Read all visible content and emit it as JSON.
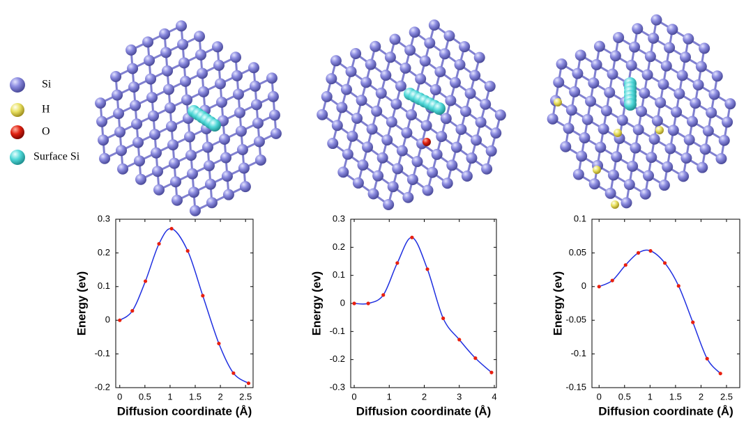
{
  "legend": {
    "items": [
      {
        "label": "Si",
        "color": "#8c8ce0"
      },
      {
        "label": "H",
        "color": "#e8e060"
      },
      {
        "label": "O",
        "color": "#e02010"
      },
      {
        "label": "Surface Si",
        "color": "#50d8d8"
      }
    ]
  },
  "chart_data": [
    {
      "type": "line",
      "xlabel": "Diffusion coordinate (Å)",
      "ylabel": "Energy (ev)",
      "x": [
        0,
        0.25,
        0.51,
        0.78,
        1.03,
        1.35,
        1.65,
        1.97,
        2.26,
        2.56
      ],
      "series": [
        {
          "color": "#1f2fe0",
          "marker_color": "#e82010",
          "values": [
            0,
            0.028,
            0.116,
            0.227,
            0.272,
            0.206,
            0.073,
            -0.069,
            -0.157,
            -0.187
          ]
        }
      ],
      "xlim": [
        -0.08,
        2.65
      ],
      "xticks": [
        0,
        0.5,
        1,
        1.5,
        2,
        2.5
      ],
      "ylim": [
        -0.2,
        0.3
      ],
      "yticks": [
        0.3,
        0.2,
        0.1,
        0,
        -0.1,
        -0.2
      ]
    },
    {
      "type": "line",
      "xlabel": "Diffusion coordinate (Å)",
      "ylabel": "Energy (ev)",
      "x": [
        0,
        0.4,
        0.83,
        1.23,
        1.65,
        2.09,
        2.54,
        3.0,
        3.46,
        3.92
      ],
      "series": [
        {
          "color": "#1f2fe0",
          "marker_color": "#e82010",
          "values": [
            0,
            0,
            0.03,
            0.144,
            0.235,
            0.122,
            -0.053,
            -0.129,
            -0.195,
            -0.246
          ]
        }
      ],
      "xlim": [
        -0.1,
        4.06
      ],
      "xticks": [
        0,
        1,
        2,
        3,
        4
      ],
      "ylim": [
        -0.3,
        0.3
      ],
      "yticks": [
        0.3,
        0.2,
        0.1,
        0,
        -0.1,
        -0.2,
        -0.3
      ]
    },
    {
      "type": "line",
      "xlabel": "Diffusion coordinate (Å)",
      "ylabel": "Energy (ev)",
      "x": [
        0,
        0.26,
        0.52,
        0.77,
        1.01,
        1.29,
        1.56,
        1.84,
        2.12,
        2.38
      ],
      "series": [
        {
          "color": "#1f2fe0",
          "marker_color": "#e82010",
          "values": [
            0,
            0.009,
            0.032,
            0.05,
            0.053,
            0.035,
            0.001,
            -0.053,
            -0.107,
            -0.129
          ]
        }
      ],
      "xlim": [
        -0.14,
        2.76
      ],
      "xticks": [
        0,
        0.5,
        1,
        1.5,
        2,
        2.5
      ],
      "ylim": [
        -0.15,
        0.1
      ],
      "yticks": [
        0.1,
        0.05,
        0,
        -0.05,
        -0.1,
        -0.15
      ]
    }
  ]
}
